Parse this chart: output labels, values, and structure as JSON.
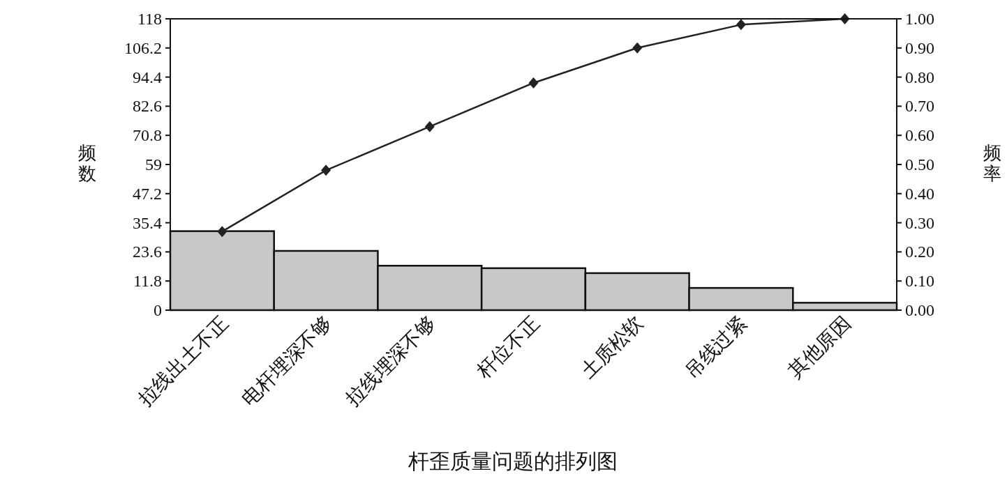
{
  "chart_data": {
    "type": "bar",
    "title": "杆歪质量问题的排列图",
    "ylabel": "频数",
    "y2label": "频率",
    "categories": [
      "拉线出土不正",
      "电杆埋深不够",
      "拉线埋深不够",
      "杆位不正",
      "土质松软",
      "吊线过紧",
      "其他原因"
    ],
    "series": [
      {
        "color": "#c8c8c8",
        "values": [
          32,
          24,
          18,
          17,
          15,
          9,
          3
        ]
      },
      {
        "type": "line",
        "axis": "y2",
        "color": "#222222",
        "marker": "diamond",
        "values": [
          0.27,
          0.48,
          0.63,
          0.78,
          0.9,
          0.98,
          1.0
        ]
      }
    ],
    "ylim": [
      0,
      118
    ],
    "yticks": [
      0,
      11.8,
      23.6,
      35.4,
      47.2,
      59,
      70.8,
      82.6,
      94.4,
      106.2,
      118
    ],
    "y2lim": [
      0,
      1
    ],
    "y2ticks": [
      {
        "value": 0,
        "label": "0.00"
      },
      {
        "value": 0.1,
        "label": "0.10"
      },
      {
        "value": 0.2,
        "label": "0.20"
      },
      {
        "value": 0.3,
        "label": "0.30"
      },
      {
        "value": 0.4,
        "label": "0.40"
      },
      {
        "value": 0.5,
        "label": "0.50"
      },
      {
        "value": 0.6,
        "label": "0.60"
      },
      {
        "value": 0.7,
        "label": "0.70"
      },
      {
        "value": 0.8,
        "label": "0.80"
      },
      {
        "value": 0.9,
        "label": "0.90"
      },
      {
        "value": 1,
        "label": "1.00"
      }
    ]
  }
}
